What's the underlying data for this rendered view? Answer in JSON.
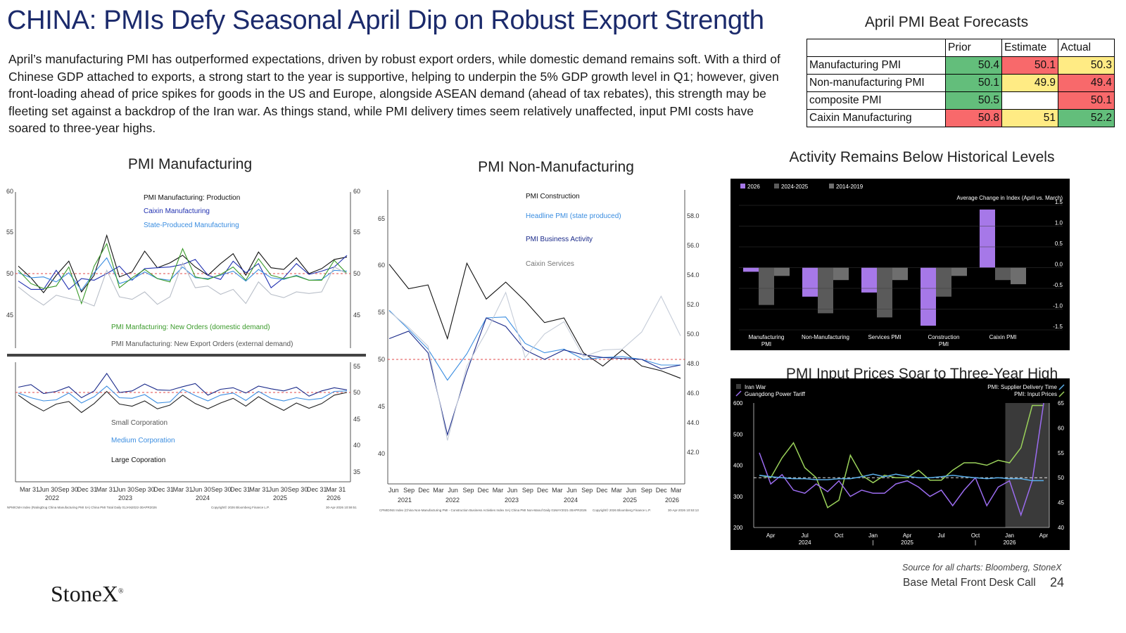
{
  "title": "CHINA: PMIs Defy Seasonal April Dip on Robust Export Strength",
  "intro": "April’s manufacturing PMI has outperformed expectations, driven by robust export orders, while domestic demand remains soft. With a third of Chinese GDP attached to exports, a strong start to the year is supportive, helping to underpin the 5% GDP growth level in Q1; however, given front-loading ahead of price spikes for goods in the US and Europe, alongside ASEAN demand (ahead of tax rebates), this strength may be fleeting set against a backdrop of the Iran war. As things stand, while PMI delivery times seem relatively unaffected, input PMI costs have soared to three-year highs.",
  "table": {
    "title": "April PMI Beat Forecasts",
    "headers": [
      "",
      "Prior",
      "Estimate",
      "Actual"
    ],
    "rows": [
      {
        "label": "Manufacturing PMI",
        "prior": "50.4",
        "estimate": "50.1",
        "actual": "50.3",
        "colors": [
          "#63be7b",
          "#f8696b",
          "#ffeb84"
        ]
      },
      {
        "label": "Non-manufacturing PMI",
        "prior": "50.1",
        "estimate": "49.9",
        "actual": "49.4",
        "colors": [
          "#63be7b",
          "#ffeb84",
          "#f8696b"
        ]
      },
      {
        "label": "composite PMI",
        "prior": "50.5",
        "estimate": "",
        "actual": "50.1",
        "colors": [
          "#63be7b",
          "#ffffff",
          "#f8696b"
        ]
      },
      {
        "label": "Caixin Manufacturing",
        "prior": "50.8",
        "estimate": "51",
        "actual": "52.2",
        "colors": [
          "#f8696b",
          "#ffeb84",
          "#63be7b"
        ]
      }
    ]
  },
  "charts": {
    "mfg": {
      "title": "PMI Manufacturing",
      "legend_top": [
        "PMI Manufacturing: Production",
        "Caixin Manufacturing",
        "State-Produced Manufacturing"
      ],
      "legend_mid": [
        "PMI Manfacturing: New Orders (domestic demand)",
        "PMI Manufacturing: New Export Orders (external demand)"
      ],
      "legend_bottom": [
        "Small Corporation",
        "Medium Corporation",
        "Large Coporation"
      ],
      "y_top": [
        "60",
        "55",
        "50",
        "45"
      ],
      "y_top_right": [
        "60",
        "55",
        "50",
        "45"
      ],
      "y_bottom": [
        "55",
        "50",
        "45",
        "40",
        "35"
      ],
      "x_labels": [
        "Mar 31",
        "Jun 30",
        "Sep 30",
        "Dec 31",
        "Mar 31",
        "Jun 30",
        "Sep 30",
        "Dec 31",
        "Mar 31",
        "Jun 30",
        "Sep 30",
        "Dec 31",
        "Mar 31",
        "Jun 30",
        "Sep 30",
        "Dec 31",
        "Mar 31"
      ],
      "years": [
        "2022",
        "2023",
        "2024",
        "2025",
        "2026"
      ],
      "footnote": "NPMICMA Index (RatingDog China Manufacturing PMI SA) China PMI Total Daily 01JAN2022-30APR2026",
      "copyright": "Copyright© 2026 Bloomberg Finance L.P.",
      "stamp": "30-Apr-2026 10:59:51"
    },
    "nonmfg": {
      "title": "PMI Non-Manufacturing",
      "legend": [
        "PMI Construction",
        "Headline PMI (state produced)",
        "PMI Business Activity",
        "Caixin Services"
      ],
      "y_left": [
        "65",
        "60",
        "55",
        "50",
        "45",
        "40"
      ],
      "y_right": [
        "58.0",
        "56.0",
        "54.0",
        "52.0",
        "50.0",
        "48.0",
        "46.0",
        "44.0",
        "42.0"
      ],
      "x_labels": [
        "Jun",
        "Sep",
        "Dec",
        "Mar",
        "Jun",
        "Sep",
        "Dec",
        "Mar",
        "Jun",
        "Sep",
        "Dec",
        "Mar",
        "Jun",
        "Sep",
        "Dec",
        "Mar",
        "Jun",
        "Sep",
        "Dec",
        "Mar"
      ],
      "years": [
        "2021",
        "2022",
        "2023",
        "2024",
        "2025",
        "2026"
      ],
      "footnote": "CPMIDINS Index (China Non-Manufacturing PMI - Construction Business Activities Index SA) China PMI Non-Manuf Daily 01MAY2021-30APR2026",
      "copyright": "Copyright© 2026 Bloomberg Finance L.P.",
      "stamp": "30-Apr-2026 10:53:13"
    },
    "activity": {
      "title": "Activity Remains Below Historical Levels",
      "subtitle": "Average Change in Index (April vs. March)",
      "y_ticks": [
        "1.5",
        "1.0",
        "0.5",
        "0.0",
        "-0.5",
        "-1.0",
        "-1.5"
      ]
    },
    "input": {
      "title": "PMI Input Prices Soar to Three-Year High",
      "legend_left": [
        "Iran War",
        "Guangdong Power Tariff"
      ],
      "legend_right": [
        "PMI: Supplier Delivery Time",
        "PMI: Input Prices"
      ],
      "y_left": [
        "600",
        "500",
        "400",
        "300",
        "200"
      ],
      "y_right": [
        "65",
        "60",
        "55",
        "50",
        "45",
        "40"
      ],
      "x_labels": [
        "Apr",
        "Jul",
        "Oct",
        "Jan",
        "Apr",
        "Jul",
        "Oct",
        "Jan",
        "Apr"
      ],
      "years": [
        "2024",
        "|",
        "2025",
        "|",
        "2026"
      ]
    }
  },
  "chart_data": [
    {
      "type": "bar",
      "title": "Activity Remains Below Historical Levels",
      "subtitle": "Average Change in Index (April vs. March)",
      "categories": [
        "Manufacturing PMI",
        "Non-Manufacturing",
        "Services PMI",
        "Construction PMI",
        "Caixin PMI"
      ],
      "series": [
        {
          "name": "2026",
          "color": "#a678e8",
          "values": [
            -0.1,
            -0.7,
            -0.6,
            -1.4,
            1.4
          ]
        },
        {
          "name": "2024-2025",
          "color": "#5a5a5a",
          "values": [
            -0.9,
            -1.1,
            -1.2,
            -0.7,
            -0.3
          ]
        },
        {
          "name": "2014-2019",
          "color": "#6e6e6e",
          "values": [
            -0.2,
            -0.3,
            -0.3,
            -0.2,
            -0.4
          ]
        }
      ],
      "ylim": [
        -1.5,
        1.5
      ],
      "legend": "top-left"
    },
    {
      "type": "line",
      "title": "PMI Input Prices Soar to Three-Year High",
      "x": [
        "2024-03",
        "2024-04",
        "2024-05",
        "2024-06",
        "2024-07",
        "2024-08",
        "2024-09",
        "2024-10",
        "2024-11",
        "2024-12",
        "2025-01",
        "2025-02",
        "2025-03",
        "2025-04",
        "2025-05",
        "2025-06",
        "2025-07",
        "2025-08",
        "2025-09",
        "2025-10",
        "2025-11",
        "2025-12",
        "2026-01",
        "2026-02",
        "2026-03",
        "2026-04"
      ],
      "series": [
        {
          "name": "PMI: Input Prices",
          "axis": "right",
          "color": "#9ad15a",
          "values": [
            50.5,
            50.0,
            54.0,
            57.0,
            52.0,
            50.0,
            44.0,
            45.5,
            54.5,
            50.5,
            49.0,
            50.5,
            50.0,
            50.0,
            51.5,
            49.5,
            49.5,
            51.5,
            53.0,
            53.0,
            52.5,
            53.5,
            53.0,
            56.0,
            64.5,
            64.5
          ]
        },
        {
          "name": "Guangdong Power Tariff",
          "axis": "left",
          "color": "#9b6cf0",
          "values": [
            440,
            340,
            370,
            320,
            310,
            340,
            315,
            350,
            300,
            320,
            310,
            310,
            340,
            350,
            330,
            300,
            320,
            270,
            320,
            360,
            270,
            330,
            350,
            240,
            350,
            600
          ]
        },
        {
          "name": "PMI: Supplier Delivery Time",
          "axis": "right",
          "color": "#5aaeea",
          "values": [
            50.5,
            50.2,
            50.0,
            49.8,
            49.8,
            49.6,
            49.6,
            49.8,
            49.8,
            50.2,
            50.7,
            50.2,
            50.7,
            50.3,
            50.0,
            50.0,
            50.2,
            50.5,
            50.2,
            50.0,
            49.8,
            50.0,
            49.8,
            49.8,
            49.4,
            49.4
          ]
        }
      ],
      "ylim_left": [
        200,
        600
      ],
      "ylim_right": [
        40,
        65
      ],
      "shaded": "Iran War"
    },
    {
      "type": "line",
      "title": "PMI Manufacturing",
      "x": [
        "2022-01",
        "2022-03",
        "2022-05",
        "2022-07",
        "2022-09",
        "2022-11",
        "2023-01",
        "2023-03",
        "2023-05",
        "2023-07",
        "2023-09",
        "2023-11",
        "2024-01",
        "2024-03",
        "2024-05",
        "2024-07",
        "2024-09",
        "2024-11",
        "2025-01",
        "2025-03",
        "2025-05",
        "2025-07",
        "2025-09",
        "2025-11",
        "2026-01",
        "2026-03",
        "2026-04"
      ],
      "series": [
        {
          "name": "PMI Manufacturing: Production",
          "color": "#111111",
          "values": [
            50.9,
            49.5,
            47.7,
            49.8,
            51.5,
            47.8,
            49.8,
            54.6,
            49.6,
            50.2,
            52.7,
            50.7,
            51.3,
            52.2,
            50.8,
            49.8,
            51.2,
            52.4,
            49.8,
            52.6,
            50.7,
            50.5,
            51.9,
            50.0,
            50.6,
            51.7,
            52.0
          ]
        },
        {
          "name": "Caixin Manufacturing",
          "color": "#2030b0",
          "values": [
            49.1,
            48.1,
            48.1,
            50.4,
            48.1,
            49.4,
            49.2,
            50.0,
            50.9,
            49.2,
            50.6,
            50.7,
            50.8,
            51.1,
            51.7,
            49.8,
            49.3,
            51.5,
            50.1,
            51.2,
            48.3,
            49.5,
            51.2,
            49.9,
            50.3,
            50.8,
            52.2
          ]
        },
        {
          "name": "State-Produced Manufacturing",
          "color": "#3a8de0",
          "values": [
            50.1,
            49.5,
            49.6,
            49.0,
            50.1,
            48.0,
            50.1,
            51.9,
            48.8,
            49.3,
            50.2,
            49.4,
            49.2,
            50.8,
            49.5,
            49.4,
            49.8,
            50.3,
            49.1,
            50.5,
            49.5,
            49.3,
            49.8,
            49.2,
            49.3,
            50.4,
            50.3
          ]
        },
        {
          "name": "PMI Manfacturing: New Orders (domestic demand)",
          "color": "#3a9a2a",
          "values": [
            50.4,
            48.8,
            48.2,
            48.5,
            50.8,
            46.4,
            50.9,
            53.6,
            48.3,
            49.5,
            50.5,
            49.4,
            49.0,
            53.0,
            49.6,
            49.3,
            49.9,
            50.8,
            49.2,
            51.8,
            49.8,
            49.4,
            49.7,
            49.2,
            49.2,
            51.6,
            50.0
          ]
        },
        {
          "name": "PMI Manufacturing: New Export Orders (external demand)",
          "color": "#b8bec8",
          "values": [
            48.4,
            47.2,
            46.2,
            47.4,
            47.0,
            46.7,
            46.1,
            50.4,
            47.2,
            46.9,
            47.8,
            46.3,
            47.2,
            51.3,
            48.3,
            48.5,
            47.5,
            48.1,
            46.4,
            49.0,
            47.5,
            47.1,
            47.8,
            47.6,
            47.8,
            50.8,
            50.0
          ]
        }
      ],
      "ylim": [
        40,
        60
      ]
    },
    {
      "type": "line",
      "title": "PMI Non-Manufacturing",
      "x": [
        "2021-05",
        "2021-09",
        "2022-01",
        "2022-05",
        "2022-09",
        "2023-01",
        "2023-05",
        "2023-09",
        "2024-01",
        "2024-05",
        "2024-09",
        "2025-01",
        "2025-05",
        "2025-09",
        "2026-01",
        "2026-04"
      ],
      "series": [
        {
          "name": "PMI Construction",
          "color": "#111111",
          "values": [
            60.1,
            57.5,
            57.9,
            52.2,
            60.2,
            56.4,
            58.2,
            56.2,
            53.9,
            54.4,
            50.7,
            49.3,
            51.0,
            49.3,
            48.8,
            48.0
          ]
        },
        {
          "name": "Headline PMI (state produced)",
          "color": "#3a8de0",
          "values": [
            55.2,
            53.2,
            51.1,
            47.8,
            50.6,
            54.4,
            54.5,
            51.7,
            50.7,
            51.1,
            50.0,
            50.2,
            50.3,
            50.0,
            49.4,
            49.4
          ]
        },
        {
          "name": "PMI Business Activity",
          "color": "#1a2a8a",
          "values": [
            52.2,
            53.0,
            50.7,
            42.0,
            48.7,
            54.4,
            53.5,
            51.0,
            50.0,
            51.0,
            50.5,
            50.2,
            50.1,
            50.0,
            49.0,
            49.4
          ]
        },
        {
          "name": "Caixin Services",
          "color": "#c5ccd8",
          "values": [
            55.1,
            53.4,
            51.4,
            41.4,
            49.3,
            52.9,
            57.1,
            50.2,
            52.7,
            54.0,
            50.3,
            51.0,
            51.1,
            52.9,
            56.7,
            52.5
          ]
        }
      ]
    }
  ],
  "footer": {
    "source": "Source for all charts: Bloomberg, StoneX",
    "call": "Base Metal Front Desk Call",
    "page": "24",
    "logo": "StoneX"
  }
}
